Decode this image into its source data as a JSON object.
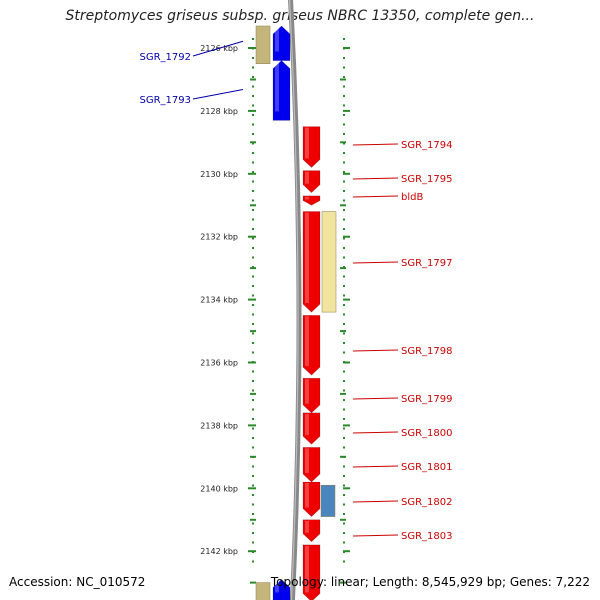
{
  "title": "Streptomyces griseus subsp. griseus NBRC 13350, complete gen...",
  "footer": {
    "accession": "Accession: NC_010572",
    "stats": "Topology: linear; Length: 8,545,929 bp; Genes: 7,222"
  },
  "colors": {
    "reverse_strand": "#0000ee",
    "forward_strand": "#ee0000",
    "reverse_label": "#0000aa",
    "forward_label": "#cc0000",
    "dna_backbone": "#888888",
    "scale_ticks": "#2a8a2a",
    "feature_khaki": "#c4b67a",
    "feature_paleyellow": "#f0e4a0",
    "feature_steelblue": "#4a86bd"
  },
  "scale": {
    "unit": "kbp",
    "start_kbp": 2125.3,
    "end_kbp": 2143.6,
    "labels": [
      {
        "kbp": 2126,
        "text": "2126 kbp"
      },
      {
        "kbp": 2128,
        "text": "2128 kbp"
      },
      {
        "kbp": 2130,
        "text": "2130 kbp"
      },
      {
        "kbp": 2132,
        "text": "2132 kbp"
      },
      {
        "kbp": 2134,
        "text": "2134 kbp"
      },
      {
        "kbp": 2136,
        "text": "2136 kbp"
      },
      {
        "kbp": 2138,
        "text": "2138 kbp"
      },
      {
        "kbp": 2140,
        "text": "2140 kbp"
      },
      {
        "kbp": 2142,
        "text": "2142 kbp"
      }
    ]
  },
  "genes": [
    {
      "name": "SGR_1792",
      "strand": "-",
      "start_kbp": 2125.3,
      "end_kbp": 2126.4
    },
    {
      "name": "SGR_1793",
      "strand": "-",
      "start_kbp": 2126.4,
      "end_kbp": 2128.3
    },
    {
      "name": "SGR_1794",
      "strand": "+",
      "start_kbp": 2128.5,
      "end_kbp": 2129.8
    },
    {
      "name": "SGR_1795",
      "strand": "+",
      "start_kbp": 2129.9,
      "end_kbp": 2130.6
    },
    {
      "name": "bldB",
      "strand": "+",
      "start_kbp": 2130.7,
      "end_kbp": 2131.0
    },
    {
      "name": "SGR_1797",
      "strand": "+",
      "start_kbp": 2131.2,
      "end_kbp": 2134.4
    },
    {
      "name": "SGR_1798",
      "strand": "+",
      "start_kbp": 2134.5,
      "end_kbp": 2136.4
    },
    {
      "name": "SGR_1799",
      "strand": "+",
      "start_kbp": 2136.5,
      "end_kbp": 2137.6
    },
    {
      "name": "SGR_1800",
      "strand": "+",
      "start_kbp": 2137.6,
      "end_kbp": 2138.6
    },
    {
      "name": "SGR_1801",
      "strand": "+",
      "start_kbp": 2138.7,
      "end_kbp": 2139.8
    },
    {
      "name": "SGR_1802",
      "strand": "+",
      "start_kbp": 2139.8,
      "end_kbp": 2140.9
    },
    {
      "name": "SGR_1803",
      "strand": "+",
      "start_kbp": 2141.0,
      "end_kbp": 2141.7
    },
    {
      "name": "",
      "strand": "+",
      "start_kbp": 2141.8,
      "end_kbp": 2143.6
    },
    {
      "name": "",
      "strand": "-",
      "start_kbp": 2142.9,
      "end_kbp": 2143.6
    }
  ],
  "features": [
    {
      "color_key": "feature_khaki",
      "start_kbp": 2125.3,
      "end_kbp": 2126.5
    },
    {
      "color_key": "feature_paleyellow",
      "start_kbp": 2131.2,
      "end_kbp": 2134.4
    },
    {
      "color_key": "feature_steelblue",
      "start_kbp": 2139.9,
      "end_kbp": 2140.9
    },
    {
      "color_key": "feature_khaki",
      "start_kbp": 2143.0,
      "end_kbp": 2143.6
    }
  ]
}
